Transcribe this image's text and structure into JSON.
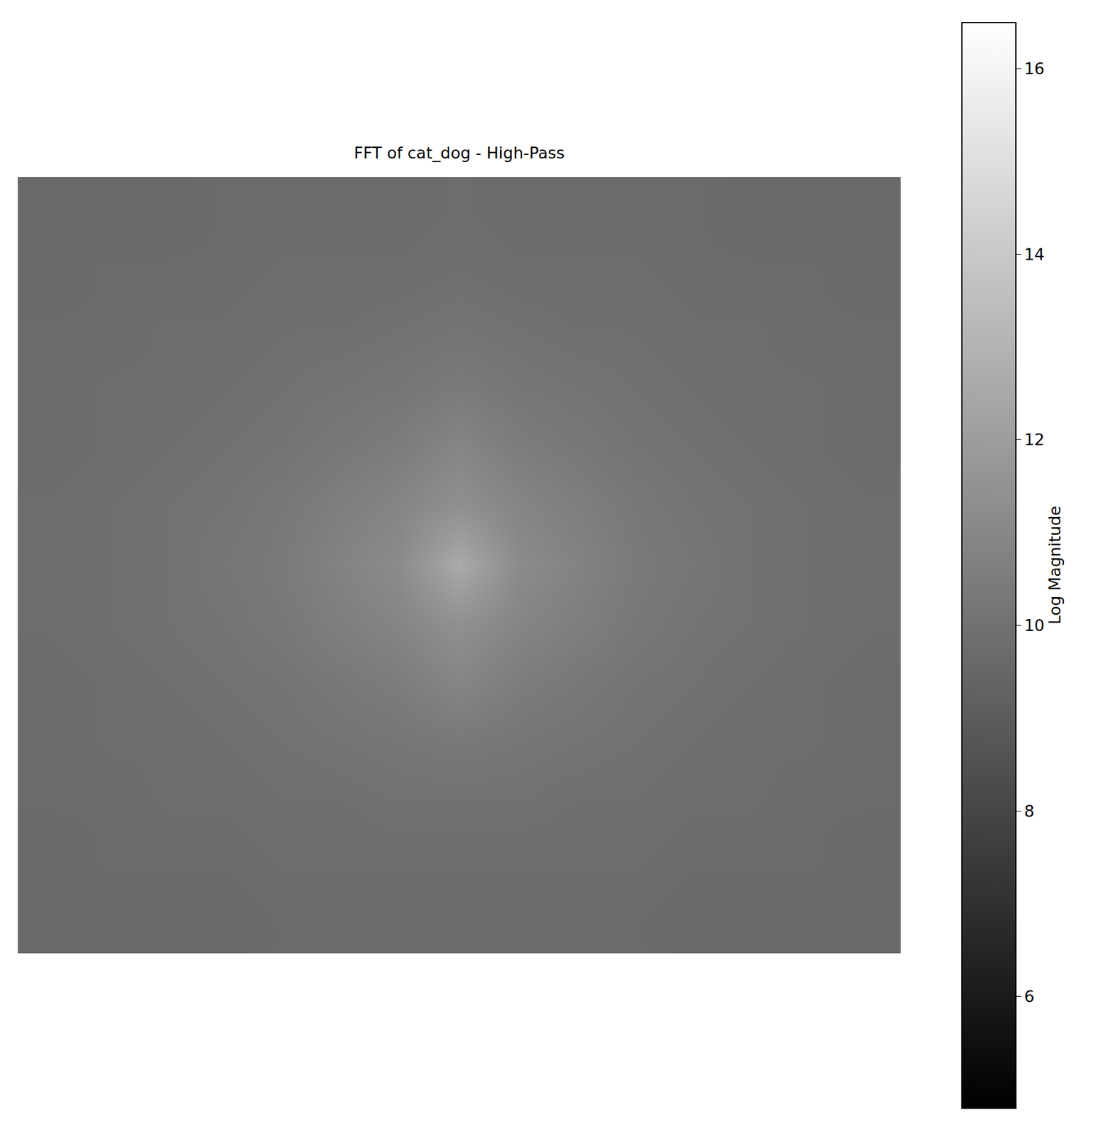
{
  "chart_data": {
    "type": "heatmap",
    "title": "FFT of cat_dog - High-Pass",
    "colorbar_title": "Log Magnitude",
    "colorbar_range": [
      4.8,
      16.5
    ],
    "colorbar_ticks": [
      6,
      8,
      10,
      12,
      14,
      16
    ],
    "color": "gray",
    "tick_labels": false,
    "cells": [
      [
        9.6,
        9.6,
        9.6,
        9.7,
        9.7,
        9.7,
        9.7,
        9.8,
        9.7,
        9.7,
        9.7,
        9.7,
        9.6,
        9.6,
        9.6
      ],
      [
        9.6,
        9.7,
        9.7,
        9.7,
        9.8,
        9.8,
        9.8,
        9.9,
        9.8,
        9.8,
        9.8,
        9.7,
        9.7,
        9.7,
        9.6
      ],
      [
        9.7,
        9.7,
        9.8,
        9.8,
        9.9,
        9.9,
        10.0,
        10.1,
        10.0,
        9.9,
        9.9,
        9.8,
        9.8,
        9.7,
        9.7
      ],
      [
        9.7,
        9.8,
        9.8,
        9.9,
        10.0,
        10.1,
        10.2,
        10.4,
        10.2,
        10.1,
        10.0,
        9.9,
        9.8,
        9.8,
        9.7
      ],
      [
        9.7,
        9.8,
        9.9,
        10.0,
        10.1,
        10.3,
        10.5,
        10.9,
        10.5,
        10.3,
        10.1,
        10.0,
        9.9,
        9.8,
        9.7
      ],
      [
        9.8,
        9.9,
        10.0,
        10.1,
        10.3,
        10.6,
        10.9,
        11.4,
        10.9,
        10.6,
        10.3,
        10.1,
        10.0,
        9.9,
        9.8
      ],
      [
        9.8,
        9.9,
        10.0,
        10.2,
        10.4,
        10.8,
        11.2,
        12.6,
        11.2,
        10.8,
        10.4,
        10.2,
        10.0,
        9.9,
        9.8
      ],
      [
        9.8,
        9.9,
        10.0,
        10.1,
        10.3,
        10.6,
        10.9,
        11.4,
        10.9,
        10.6,
        10.3,
        10.1,
        10.0,
        9.9,
        9.8
      ],
      [
        9.7,
        9.8,
        9.9,
        10.0,
        10.1,
        10.3,
        10.5,
        10.9,
        10.5,
        10.3,
        10.1,
        10.0,
        9.9,
        9.8,
        9.7
      ],
      [
        9.7,
        9.8,
        9.8,
        9.9,
        10.0,
        10.1,
        10.2,
        10.3,
        10.2,
        10.1,
        10.0,
        9.9,
        9.8,
        9.8,
        9.7
      ],
      [
        9.7,
        9.7,
        9.8,
        9.8,
        9.9,
        9.9,
        10.0,
        10.0,
        10.0,
        9.9,
        9.9,
        9.8,
        9.8,
        9.7,
        9.7
      ],
      [
        9.6,
        9.7,
        9.7,
        9.7,
        9.8,
        9.8,
        9.8,
        9.8,
        9.8,
        9.8,
        9.8,
        9.7,
        9.7,
        9.7,
        9.6
      ],
      [
        9.6,
        9.6,
        9.6,
        9.6,
        9.7,
        9.7,
        9.7,
        9.7,
        9.7,
        9.7,
        9.7,
        9.6,
        9.6,
        9.6,
        9.6
      ]
    ]
  }
}
